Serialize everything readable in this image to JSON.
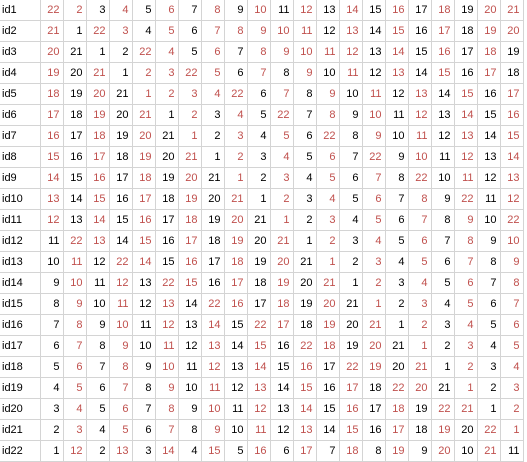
{
  "colors": {
    "black": "#000000",
    "red": "#c0504d",
    "grid": "#d4d4d4"
  },
  "rows": [
    {
      "id": "id1",
      "values": [
        22,
        2,
        3,
        4,
        5,
        6,
        7,
        8,
        9,
        10,
        11,
        12,
        13,
        14,
        15,
        16,
        17,
        18,
        19,
        20,
        21
      ],
      "red": [
        1,
        1,
        0,
        1,
        0,
        1,
        0,
        1,
        0,
        1,
        0,
        1,
        0,
        1,
        0,
        1,
        0,
        1,
        0,
        1,
        1
      ]
    },
    {
      "id": "id2",
      "values": [
        21,
        1,
        22,
        3,
        4,
        5,
        6,
        7,
        8,
        9,
        10,
        11,
        12,
        13,
        14,
        15,
        16,
        17,
        18,
        19,
        20
      ],
      "red": [
        1,
        0,
        1,
        1,
        0,
        1,
        0,
        1,
        1,
        1,
        1,
        1,
        0,
        1,
        0,
        1,
        0,
        1,
        0,
        1,
        1
      ]
    },
    {
      "id": "id3",
      "values": [
        20,
        21,
        1,
        2,
        22,
        4,
        5,
        6,
        7,
        8,
        9,
        10,
        11,
        12,
        13,
        14,
        15,
        16,
        17,
        18,
        19
      ],
      "red": [
        1,
        0,
        0,
        0,
        1,
        1,
        0,
        1,
        0,
        1,
        1,
        1,
        1,
        1,
        0,
        1,
        0,
        1,
        0,
        1,
        0
      ]
    },
    {
      "id": "id4",
      "values": [
        19,
        20,
        21,
        1,
        2,
        3,
        22,
        5,
        6,
        7,
        8,
        9,
        10,
        11,
        12,
        13,
        14,
        15,
        16,
        17,
        18
      ],
      "red": [
        1,
        0,
        1,
        0,
        1,
        1,
        1,
        1,
        0,
        1,
        0,
        1,
        0,
        1,
        0,
        1,
        0,
        1,
        0,
        1,
        0
      ]
    },
    {
      "id": "id5",
      "values": [
        18,
        19,
        20,
        21,
        1,
        2,
        3,
        4,
        22,
        6,
        7,
        8,
        9,
        10,
        11,
        12,
        13,
        14,
        15,
        16,
        17
      ],
      "red": [
        1,
        0,
        1,
        0,
        1,
        1,
        1,
        1,
        1,
        0,
        1,
        0,
        1,
        0,
        1,
        0,
        1,
        0,
        1,
        0,
        1
      ]
    },
    {
      "id": "id6",
      "values": [
        17,
        18,
        19,
        20,
        21,
        1,
        2,
        3,
        4,
        5,
        22,
        7,
        8,
        9,
        10,
        11,
        12,
        13,
        14,
        15,
        16
      ],
      "red": [
        1,
        0,
        1,
        0,
        1,
        0,
        1,
        0,
        1,
        0,
        1,
        0,
        1,
        0,
        1,
        0,
        1,
        0,
        1,
        0,
        1
      ]
    },
    {
      "id": "id7",
      "values": [
        16,
        17,
        18,
        19,
        20,
        21,
        1,
        2,
        3,
        4,
        5,
        6,
        22,
        8,
        9,
        10,
        11,
        12,
        13,
        14,
        15
      ],
      "red": [
        1,
        0,
        1,
        0,
        1,
        0,
        1,
        0,
        1,
        0,
        1,
        0,
        1,
        0,
        1,
        0,
        1,
        0,
        1,
        0,
        1
      ]
    },
    {
      "id": "id8",
      "values": [
        15,
        16,
        17,
        18,
        19,
        20,
        21,
        1,
        2,
        3,
        4,
        5,
        6,
        7,
        22,
        9,
        10,
        11,
        12,
        13,
        14
      ],
      "red": [
        1,
        0,
        1,
        0,
        1,
        0,
        1,
        0,
        1,
        0,
        1,
        0,
        1,
        0,
        1,
        0,
        1,
        0,
        1,
        0,
        1
      ]
    },
    {
      "id": "id9",
      "values": [
        14,
        15,
        16,
        17,
        18,
        19,
        20,
        21,
        1,
        2,
        3,
        4,
        5,
        6,
        7,
        8,
        22,
        10,
        11,
        12,
        13
      ],
      "red": [
        1,
        0,
        1,
        0,
        1,
        0,
        1,
        0,
        1,
        0,
        1,
        0,
        1,
        0,
        1,
        0,
        1,
        0,
        1,
        0,
        1
      ]
    },
    {
      "id": "id10",
      "values": [
        13,
        14,
        15,
        16,
        17,
        18,
        19,
        20,
        21,
        1,
        2,
        3,
        4,
        5,
        6,
        7,
        8,
        9,
        22,
        11,
        12
      ],
      "red": [
        1,
        0,
        1,
        0,
        1,
        0,
        1,
        0,
        1,
        0,
        1,
        0,
        1,
        0,
        1,
        0,
        1,
        0,
        1,
        0,
        1
      ]
    },
    {
      "id": "id11",
      "values": [
        12,
        13,
        14,
        15,
        16,
        17,
        18,
        19,
        20,
        21,
        1,
        2,
        3,
        4,
        5,
        6,
        7,
        8,
        9,
        10,
        22
      ],
      "red": [
        1,
        0,
        1,
        0,
        1,
        0,
        1,
        0,
        1,
        0,
        1,
        0,
        1,
        0,
        1,
        0,
        1,
        0,
        1,
        0,
        1
      ]
    },
    {
      "id": "id12",
      "values": [
        11,
        22,
        13,
        14,
        15,
        16,
        17,
        18,
        19,
        20,
        21,
        1,
        2,
        3,
        4,
        5,
        6,
        7,
        8,
        9,
        10
      ],
      "red": [
        0,
        1,
        1,
        0,
        1,
        0,
        1,
        0,
        1,
        0,
        1,
        0,
        1,
        0,
        1,
        0,
        1,
        0,
        1,
        0,
        1
      ]
    },
    {
      "id": "id13",
      "values": [
        10,
        11,
        12,
        22,
        14,
        15,
        16,
        17,
        18,
        19,
        20,
        21,
        1,
        2,
        3,
        4,
        5,
        6,
        7,
        8,
        9
      ],
      "red": [
        0,
        1,
        0,
        1,
        1,
        0,
        1,
        0,
        1,
        0,
        1,
        0,
        1,
        0,
        1,
        0,
        1,
        0,
        1,
        0,
        1
      ]
    },
    {
      "id": "id14",
      "values": [
        9,
        10,
        11,
        12,
        13,
        22,
        15,
        16,
        17,
        18,
        19,
        20,
        21,
        1,
        2,
        3,
        4,
        5,
        6,
        7,
        8
      ],
      "red": [
        0,
        1,
        0,
        1,
        0,
        1,
        1,
        0,
        1,
        0,
        1,
        0,
        1,
        0,
        1,
        0,
        1,
        0,
        1,
        0,
        1
      ]
    },
    {
      "id": "id15",
      "values": [
        8,
        9,
        10,
        11,
        12,
        13,
        14,
        22,
        16,
        17,
        18,
        19,
        20,
        21,
        1,
        2,
        3,
        4,
        5,
        6,
        7
      ],
      "red": [
        0,
        1,
        0,
        1,
        0,
        1,
        0,
        1,
        1,
        0,
        1,
        0,
        1,
        0,
        1,
        0,
        1,
        0,
        1,
        0,
        1
      ]
    },
    {
      "id": "id16",
      "values": [
        7,
        8,
        9,
        10,
        11,
        12,
        13,
        14,
        15,
        22,
        17,
        18,
        19,
        20,
        21,
        1,
        2,
        3,
        4,
        5,
        6
      ],
      "red": [
        0,
        1,
        0,
        1,
        0,
        1,
        0,
        1,
        0,
        1,
        1,
        0,
        1,
        0,
        1,
        0,
        1,
        0,
        1,
        0,
        1
      ]
    },
    {
      "id": "id17",
      "values": [
        6,
        7,
        8,
        9,
        10,
        11,
        12,
        13,
        14,
        15,
        16,
        22,
        18,
        19,
        20,
        21,
        1,
        2,
        3,
        4,
        5
      ],
      "red": [
        0,
        1,
        0,
        1,
        0,
        1,
        0,
        1,
        0,
        1,
        0,
        1,
        1,
        0,
        1,
        0,
        1,
        0,
        1,
        0,
        1
      ]
    },
    {
      "id": "id18",
      "values": [
        5,
        6,
        7,
        8,
        9,
        10,
        11,
        12,
        13,
        14,
        15,
        16,
        17,
        22,
        19,
        20,
        21,
        1,
        2,
        3,
        4
      ],
      "red": [
        0,
        1,
        0,
        1,
        0,
        1,
        0,
        1,
        0,
        1,
        0,
        1,
        0,
        1,
        1,
        0,
        1,
        0,
        1,
        0,
        1
      ]
    },
    {
      "id": "id19",
      "values": [
        4,
        5,
        6,
        7,
        8,
        9,
        10,
        11,
        12,
        13,
        14,
        15,
        16,
        17,
        18,
        22,
        20,
        21,
        1,
        2,
        3
      ],
      "red": [
        0,
        1,
        0,
        1,
        0,
        1,
        0,
        1,
        0,
        1,
        0,
        1,
        0,
        1,
        0,
        1,
        1,
        0,
        1,
        0,
        1
      ]
    },
    {
      "id": "id20",
      "values": [
        3,
        4,
        5,
        6,
        7,
        8,
        9,
        10,
        11,
        12,
        13,
        14,
        15,
        16,
        17,
        18,
        19,
        22,
        21,
        1,
        2
      ],
      "red": [
        0,
        1,
        0,
        1,
        0,
        1,
        0,
        1,
        0,
        1,
        0,
        1,
        0,
        1,
        0,
        1,
        0,
        1,
        1,
        0,
        1
      ]
    },
    {
      "id": "id21",
      "values": [
        2,
        3,
        4,
        5,
        6,
        7,
        8,
        9,
        10,
        11,
        12,
        13,
        14,
        15,
        16,
        17,
        18,
        19,
        20,
        22,
        1
      ],
      "red": [
        0,
        1,
        0,
        1,
        0,
        1,
        0,
        1,
        0,
        1,
        0,
        1,
        0,
        1,
        0,
        1,
        0,
        1,
        0,
        1,
        1
      ]
    },
    {
      "id": "id22",
      "values": [
        1,
        12,
        2,
        13,
        3,
        14,
        4,
        15,
        5,
        16,
        6,
        17,
        7,
        18,
        8,
        19,
        9,
        20,
        10,
        21,
        11
      ],
      "red": [
        0,
        1,
        0,
        1,
        0,
        1,
        0,
        1,
        0,
        1,
        0,
        1,
        0,
        1,
        0,
        1,
        0,
        1,
        0,
        1,
        0
      ]
    }
  ]
}
